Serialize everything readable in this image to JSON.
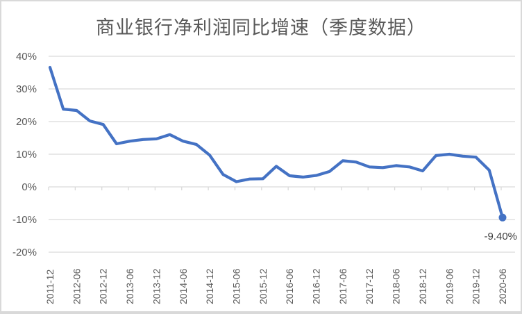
{
  "chart_data": {
    "type": "line",
    "title": "商业银行净利润同比增速（季度数据）",
    "xlabel": "",
    "ylabel": "",
    "ylim": [
      -0.2,
      0.4
    ],
    "yticks": [
      "40%",
      "30%",
      "20%",
      "10%",
      "0%",
      "-10%",
      "-20%"
    ],
    "grid": true,
    "legend": "none",
    "x_tick_labels": [
      "2011-12",
      "2012-06",
      "2012-12",
      "2013-06",
      "2013-12",
      "2014-06",
      "2014-12",
      "2015-06",
      "2015-12",
      "2016-06",
      "2016-12",
      "2017-06",
      "2017-12",
      "2018-06",
      "2018-12",
      "2019-06",
      "2019-12",
      "2020-06"
    ],
    "x": [
      "2011-12",
      "2012-03",
      "2012-06",
      "2012-09",
      "2012-12",
      "2013-03",
      "2013-06",
      "2013-09",
      "2013-12",
      "2014-03",
      "2014-06",
      "2014-09",
      "2014-12",
      "2015-03",
      "2015-06",
      "2015-09",
      "2015-12",
      "2016-03",
      "2016-06",
      "2016-09",
      "2016-12",
      "2017-03",
      "2017-06",
      "2017-09",
      "2017-12",
      "2018-03",
      "2018-06",
      "2018-09",
      "2018-12",
      "2019-03",
      "2019-06",
      "2019-09",
      "2019-12",
      "2020-03",
      "2020-06"
    ],
    "series": [
      {
        "name": "商业银行净利润同比增速",
        "color": "#4472c4",
        "values": [
          36.6,
          23.8,
          23.4,
          20.2,
          19.1,
          13.2,
          14.0,
          14.5,
          14.7,
          16.0,
          14.0,
          13.0,
          9.7,
          3.8,
          1.6,
          2.4,
          2.5,
          6.3,
          3.4,
          3.0,
          3.5,
          4.7,
          8.0,
          7.6,
          6.1,
          5.9,
          6.5,
          6.1,
          4.9,
          9.6,
          10.0,
          9.4,
          9.1,
          5.1,
          -9.4
        ]
      }
    ],
    "annotations": [
      {
        "x": "2020-06",
        "text": "-9.40%",
        "marker": true
      }
    ]
  }
}
